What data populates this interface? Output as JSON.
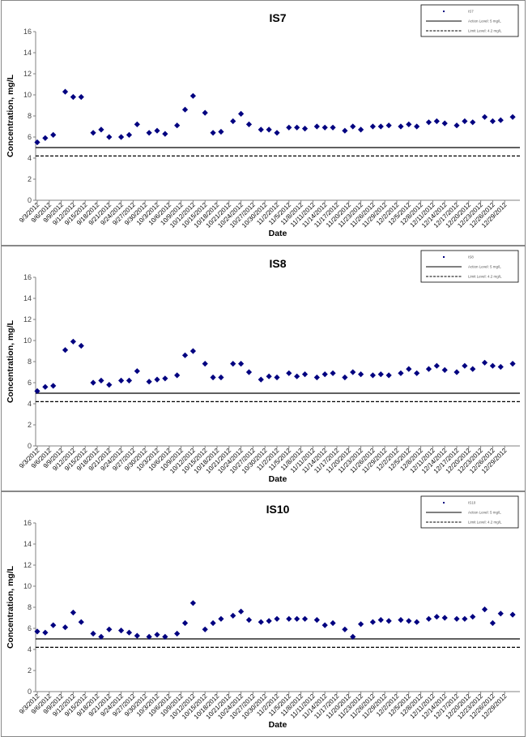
{
  "colors": {
    "marker": "#000080",
    "line": "#000000"
  },
  "chart_data": [
    {
      "type": "scatter",
      "title": "IS7",
      "xlabel": "Date",
      "ylabel": "Concentration, mg/L",
      "ylim": [
        0,
        16
      ],
      "yticks": [
        "0",
        "2",
        "4",
        "6",
        "8",
        "10",
        "12",
        "14",
        "16"
      ],
      "x_tick_labels": [
        "9/3/2012",
        "9/6/2012",
        "9/9/2012",
        "9/12/2012",
        "9/15/2012",
        "9/18/2012",
        "9/21/2012",
        "9/24/2012",
        "9/27/2012",
        "9/30/2012",
        "10/3/2012",
        "10/6/2012",
        "10/9/2012",
        "10/12/2012",
        "10/15/2012",
        "10/18/2012",
        "10/21/2012",
        "10/24/2012",
        "10/27/2012",
        "10/30/2012",
        "11/2/2012",
        "11/5/2012",
        "11/8/2012",
        "11/11/2012",
        "11/14/2012",
        "11/17/2012",
        "11/20/2012",
        "11/23/2012",
        "11/26/2012",
        "11/29/2012",
        "12/2/2012",
        "12/5/2012",
        "12/8/2012",
        "12/11/2012",
        "12/14/2012",
        "12/17/2012",
        "12/20/2012",
        "12/23/2012",
        "12/26/2012",
        "12/29/2012"
      ],
      "legend": [
        {
          "label": "IS7",
          "kind": "marker"
        },
        {
          "label": "Action Level: 5 mg/L",
          "kind": "solid"
        },
        {
          "label": "Limit Level: 4.2 mg/L",
          "kind": "dashed"
        }
      ],
      "hlines": [
        {
          "y": 5.0,
          "style": "solid"
        },
        {
          "y": 4.2,
          "style": "dashed"
        }
      ],
      "points": [
        [
          "9/3/2012",
          5.5
        ],
        [
          "9/5/2012",
          5.9
        ],
        [
          "9/7/2012",
          6.2
        ],
        [
          "9/10/2012",
          10.3
        ],
        [
          "9/12/2012",
          9.8
        ],
        [
          "9/14/2012",
          9.8
        ],
        [
          "9/17/2012",
          6.4
        ],
        [
          "9/19/2012",
          6.7
        ],
        [
          "9/21/2012",
          6.0
        ],
        [
          "9/24/2012",
          6.0
        ],
        [
          "9/26/2012",
          6.2
        ],
        [
          "9/28/2012",
          7.2
        ],
        [
          "10/1/2012",
          6.4
        ],
        [
          "10/3/2012",
          6.6
        ],
        [
          "10/5/2012",
          6.3
        ],
        [
          "10/8/2012",
          7.1
        ],
        [
          "10/10/2012",
          8.6
        ],
        [
          "10/12/2012",
          9.9
        ],
        [
          "10/15/2012",
          8.3
        ],
        [
          "10/17/2012",
          6.4
        ],
        [
          "10/19/2012",
          6.5
        ],
        [
          "10/22/2012",
          7.5
        ],
        [
          "10/24/2012",
          8.2
        ],
        [
          "10/26/2012",
          7.2
        ],
        [
          "10/29/2012",
          6.7
        ],
        [
          "10/31/2012",
          6.7
        ],
        [
          "11/2/2012",
          6.4
        ],
        [
          "11/5/2012",
          6.9
        ],
        [
          "11/7/2012",
          6.9
        ],
        [
          "11/9/2012",
          6.8
        ],
        [
          "11/12/2012",
          7.0
        ],
        [
          "11/14/2012",
          6.9
        ],
        [
          "11/16/2012",
          6.9
        ],
        [
          "11/19/2012",
          6.6
        ],
        [
          "11/21/2012",
          7.0
        ],
        [
          "11/23/2012",
          6.7
        ],
        [
          "11/26/2012",
          7.0
        ],
        [
          "11/28/2012",
          7.0
        ],
        [
          "11/30/2012",
          7.1
        ],
        [
          "12/3/2012",
          7.0
        ],
        [
          "12/5/2012",
          7.2
        ],
        [
          "12/7/2012",
          7.0
        ],
        [
          "12/10/2012",
          7.4
        ],
        [
          "12/12/2012",
          7.5
        ],
        [
          "12/14/2012",
          7.3
        ],
        [
          "12/17/2012",
          7.1
        ],
        [
          "12/19/2012",
          7.5
        ],
        [
          "12/21/2012",
          7.4
        ],
        [
          "12/24/2012",
          7.9
        ],
        [
          "12/26/2012",
          7.5
        ],
        [
          "12/28/2012",
          7.6
        ],
        [
          "12/31/2012",
          7.9
        ]
      ]
    },
    {
      "type": "scatter",
      "title": "IS8",
      "xlabel": "Date",
      "ylabel": "Concentration, mg/L",
      "ylim": [
        0,
        16
      ],
      "yticks": [
        "0",
        "2",
        "4",
        "6",
        "8",
        "10",
        "12",
        "14",
        "16"
      ],
      "x_tick_labels": [
        "9/3/2012",
        "9/6/2012",
        "9/9/2012",
        "9/12/2012",
        "9/15/2012",
        "9/18/2012",
        "9/21/2012",
        "9/24/2012",
        "9/27/2012",
        "9/30/2012",
        "10/3/2012",
        "10/6/2012",
        "10/9/2012",
        "10/12/2012",
        "10/15/2012",
        "10/18/2012",
        "10/21/2012",
        "10/24/2012",
        "10/27/2012",
        "10/30/2012",
        "11/2/2012",
        "11/5/2012",
        "11/8/2012",
        "11/11/2012",
        "11/14/2012",
        "11/17/2012",
        "11/20/2012",
        "11/23/2012",
        "11/26/2012",
        "11/29/2012",
        "12/2/2012",
        "12/5/2012",
        "12/8/2012",
        "12/11/2012",
        "12/14/2012",
        "12/17/2012",
        "12/20/2012",
        "12/23/2012",
        "12/26/2012",
        "12/29/2012"
      ],
      "legend": [
        {
          "label": "IS8",
          "kind": "marker"
        },
        {
          "label": "Action Level: 5 mg/L",
          "kind": "solid"
        },
        {
          "label": "Limit Level: 4.2 mg/L",
          "kind": "dashed"
        }
      ],
      "hlines": [
        {
          "y": 5.0,
          "style": "solid"
        },
        {
          "y": 4.2,
          "style": "dashed"
        }
      ],
      "points": [
        [
          "9/3/2012",
          5.2
        ],
        [
          "9/5/2012",
          5.6
        ],
        [
          "9/7/2012",
          5.7
        ],
        [
          "9/10/2012",
          9.1
        ],
        [
          "9/12/2012",
          9.9
        ],
        [
          "9/14/2012",
          9.5
        ],
        [
          "9/17/2012",
          6.0
        ],
        [
          "9/19/2012",
          6.2
        ],
        [
          "9/21/2012",
          5.8
        ],
        [
          "9/24/2012",
          6.2
        ],
        [
          "9/26/2012",
          6.2
        ],
        [
          "9/28/2012",
          7.1
        ],
        [
          "10/1/2012",
          6.1
        ],
        [
          "10/3/2012",
          6.3
        ],
        [
          "10/5/2012",
          6.4
        ],
        [
          "10/8/2012",
          6.7
        ],
        [
          "10/10/2012",
          8.6
        ],
        [
          "10/12/2012",
          9.0
        ],
        [
          "10/15/2012",
          7.8
        ],
        [
          "10/17/2012",
          6.5
        ],
        [
          "10/19/2012",
          6.5
        ],
        [
          "10/22/2012",
          7.8
        ],
        [
          "10/24/2012",
          7.8
        ],
        [
          "10/26/2012",
          7.0
        ],
        [
          "10/29/2012",
          6.3
        ],
        [
          "10/31/2012",
          6.6
        ],
        [
          "11/2/2012",
          6.5
        ],
        [
          "11/5/2012",
          6.9
        ],
        [
          "11/7/2012",
          6.6
        ],
        [
          "11/9/2012",
          6.8
        ],
        [
          "11/12/2012",
          6.5
        ],
        [
          "11/14/2012",
          6.8
        ],
        [
          "11/16/2012",
          6.9
        ],
        [
          "11/19/2012",
          6.5
        ],
        [
          "11/21/2012",
          7.0
        ],
        [
          "11/23/2012",
          6.8
        ],
        [
          "11/26/2012",
          6.7
        ],
        [
          "11/28/2012",
          6.8
        ],
        [
          "11/30/2012",
          6.7
        ],
        [
          "12/3/2012",
          6.9
        ],
        [
          "12/5/2012",
          7.3
        ],
        [
          "12/7/2012",
          6.9
        ],
        [
          "12/10/2012",
          7.3
        ],
        [
          "12/12/2012",
          7.6
        ],
        [
          "12/14/2012",
          7.2
        ],
        [
          "12/17/2012",
          7.0
        ],
        [
          "12/19/2012",
          7.6
        ],
        [
          "12/21/2012",
          7.3
        ],
        [
          "12/24/2012",
          7.9
        ],
        [
          "12/26/2012",
          7.6
        ],
        [
          "12/28/2012",
          7.5
        ],
        [
          "12/31/2012",
          7.8
        ]
      ]
    },
    {
      "type": "scatter",
      "title": "IS10",
      "xlabel": "Date",
      "ylabel": "Concentration, mg/L",
      "ylim": [
        0,
        16
      ],
      "yticks": [
        "0",
        "2",
        "4",
        "6",
        "8",
        "10",
        "12",
        "14",
        "16"
      ],
      "x_tick_labels": [
        "9/3/2012",
        "9/6/2012",
        "9/9/2012",
        "9/12/2012",
        "9/15/2012",
        "9/18/2012",
        "9/21/2012",
        "9/24/2012",
        "9/27/2012",
        "9/30/2012",
        "10/3/2012",
        "10/6/2012",
        "10/9/2012",
        "10/12/2012",
        "10/15/2012",
        "10/18/2012",
        "10/21/2012",
        "10/24/2012",
        "10/27/2012",
        "10/30/2012",
        "11/2/2012",
        "11/5/2012",
        "11/8/2012",
        "11/11/2012",
        "11/14/2012",
        "11/17/2012",
        "11/20/2012",
        "11/23/2012",
        "11/26/2012",
        "11/29/2012",
        "12/2/2012",
        "12/5/2012",
        "12/8/2012",
        "12/11/2012",
        "12/14/2012",
        "12/17/2012",
        "12/20/2012",
        "12/23/2012",
        "12/26/2012",
        "12/29/2012"
      ],
      "legend": [
        {
          "label": "IS10",
          "kind": "marker"
        },
        {
          "label": "Action Level: 5 mg/L",
          "kind": "solid"
        },
        {
          "label": "Limit Level: 4.2 mg/L",
          "kind": "dashed"
        }
      ],
      "hlines": [
        {
          "y": 5.0,
          "style": "solid"
        },
        {
          "y": 4.2,
          "style": "dashed"
        }
      ],
      "points": [
        [
          "9/3/2012",
          5.7
        ],
        [
          "9/5/2012",
          5.6
        ],
        [
          "9/7/2012",
          6.3
        ],
        [
          "9/10/2012",
          6.1
        ],
        [
          "9/12/2012",
          7.5
        ],
        [
          "9/14/2012",
          6.6
        ],
        [
          "9/17/2012",
          5.5
        ],
        [
          "9/19/2012",
          5.2
        ],
        [
          "9/21/2012",
          5.9
        ],
        [
          "9/24/2012",
          5.8
        ],
        [
          "9/26/2012",
          5.6
        ],
        [
          "9/28/2012",
          5.3
        ],
        [
          "10/1/2012",
          5.2
        ],
        [
          "10/3/2012",
          5.4
        ],
        [
          "10/5/2012",
          5.2
        ],
        [
          "10/8/2012",
          5.5
        ],
        [
          "10/10/2012",
          6.5
        ],
        [
          "10/12/2012",
          8.4
        ],
        [
          "10/15/2012",
          5.9
        ],
        [
          "10/17/2012",
          6.5
        ],
        [
          "10/19/2012",
          6.9
        ],
        [
          "10/22/2012",
          7.2
        ],
        [
          "10/24/2012",
          7.6
        ],
        [
          "10/26/2012",
          6.8
        ],
        [
          "10/29/2012",
          6.6
        ],
        [
          "10/31/2012",
          6.7
        ],
        [
          "11/2/2012",
          6.9
        ],
        [
          "11/5/2012",
          6.9
        ],
        [
          "11/7/2012",
          6.9
        ],
        [
          "11/9/2012",
          6.9
        ],
        [
          "11/12/2012",
          6.8
        ],
        [
          "11/14/2012",
          6.3
        ],
        [
          "11/16/2012",
          6.5
        ],
        [
          "11/19/2012",
          5.9
        ],
        [
          "11/21/2012",
          5.2
        ],
        [
          "11/23/2012",
          6.4
        ],
        [
          "11/26/2012",
          6.6
        ],
        [
          "11/28/2012",
          6.8
        ],
        [
          "11/30/2012",
          6.7
        ],
        [
          "12/3/2012",
          6.8
        ],
        [
          "12/5/2012",
          6.7
        ],
        [
          "12/7/2012",
          6.6
        ],
        [
          "12/10/2012",
          6.9
        ],
        [
          "12/12/2012",
          7.1
        ],
        [
          "12/14/2012",
          7.0
        ],
        [
          "12/17/2012",
          6.9
        ],
        [
          "12/19/2012",
          6.9
        ],
        [
          "12/21/2012",
          7.1
        ],
        [
          "12/24/2012",
          7.8
        ],
        [
          "12/26/2012",
          6.5
        ],
        [
          "12/28/2012",
          7.4
        ],
        [
          "12/31/2012",
          7.3
        ]
      ]
    }
  ]
}
